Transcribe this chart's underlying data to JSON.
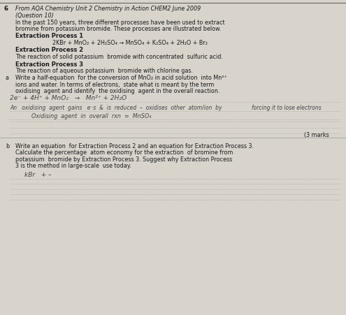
{
  "page_bg": "#d8d4cc",
  "text_color": "#1a1a1a",
  "handwriting_color": "#444444",
  "dot_line_color": "#888888",
  "question_number": "6",
  "title_line": "From AQA Chemistry Unit 2 Chemistry in Action CHEM2 June 2009",
  "subtitle_line": "(Question 10)",
  "intro_line1": "In the past 150 years, three different processes have been used to extract",
  "intro_line2": "bromine from potassium bromide. These processes are illustrated below.",
  "ep1_header": "Extraction Process 1",
  "ep1_equation": "2KBr + MnO₂ + 2H₂SO₄ → MnSO₄ + K₂SO₄ + 2H₂O + Br₂",
  "ep2_header": "Extraction Process 2",
  "ep2_desc": "The reaction of solid potassium  bromide with concentrated  sulfuric acid.",
  "ep3_header": "Extraction Process 3",
  "ep3_desc": "The reaction of aqueous potassium  bromide with chlorine gas.",
  "qa_label": "a",
  "qa_text1": "Write a half-equation  for the conversion of MnO₂ in acid solution  into Mn²⁺",
  "qa_text2": "ions and water. In terms of electrons,  state what is meant by the term",
  "qa_text3": "oxidising  agent and identify  the oxidising  agent in the overall reaction.",
  "hw1": "2e⁻ + 4H⁺ + MnO₂   →   Mn²⁺ + 2H₂O",
  "hw2a": "An   oxidising  agent  gains   e⁻s  &  is  reduced  –  oxidises  other  atom/ion  by",
  "hw2b": "forcing it to lose electrons",
  "hw3": "Oxidising  agent  in  overall  rxn  =  MnSO₄",
  "marks_label": "(3 marks",
  "qb_label": "b",
  "qb_text1": "Write an equation  for Extraction Process 2 and an equation for Extraction Process 3.",
  "qb_text2": "Calculate the percentage  atom economy for the extraction  of bromine from",
  "qb_text3": "potassium  bromide by Extraction Process 3. Suggest why Extraction Process",
  "qb_text4": "3 is the method in large-scale  use today.",
  "hwb1": "kBr   + –"
}
